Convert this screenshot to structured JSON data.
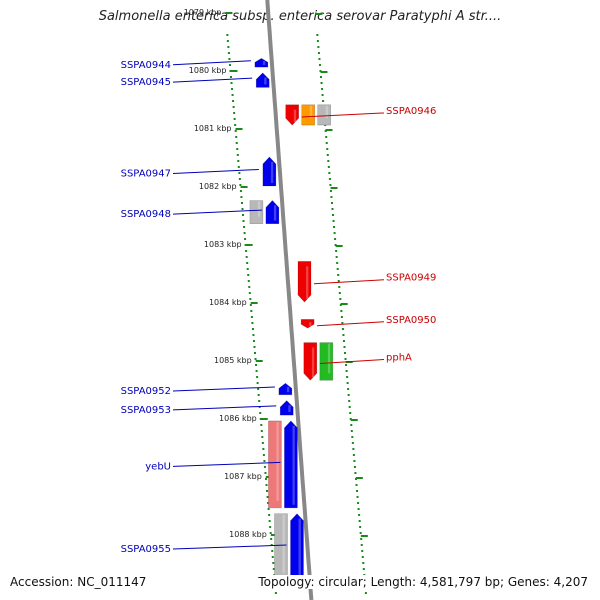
{
  "title": "Salmonella enterica subsp. enterica serovar Paratyphi A str....",
  "accession_label": "Accession: NC_011147",
  "topology_label": "Topology: circular; Length: 4,581,797 bp; Genes: 4,207",
  "colors": {
    "forward": "#0000ee",
    "reverse": "#ee0000",
    "forward_label": "#0000bb",
    "reverse_label": "#cc0000",
    "ruler": "#888888",
    "ticks": "#1a8a1a",
    "pseudo_grey": "#b8b8b8",
    "pink": "#ee7777",
    "green": "#22bb22",
    "orange": "#ff9900"
  },
  "ticks": [
    {
      "kbp": 1079,
      "label": "1079 kbp"
    },
    {
      "kbp": 1080,
      "label": "1080 kbp"
    },
    {
      "kbp": 1081,
      "label": "1081 kbp"
    },
    {
      "kbp": 1082,
      "label": "1082 kbp"
    },
    {
      "kbp": 1083,
      "label": "1083 kbp"
    },
    {
      "kbp": 1084,
      "label": "1084 kbp"
    },
    {
      "kbp": 1085,
      "label": "1085 kbp"
    },
    {
      "kbp": 1086,
      "label": "1086 kbp"
    },
    {
      "kbp": 1087,
      "label": "1087 kbp"
    },
    {
      "kbp": 1088,
      "label": "1088 kbp"
    }
  ],
  "genes": [
    {
      "name": "SSPA0944",
      "strand": "+",
      "start": 1079.8,
      "end": 1079.95,
      "color": "forward",
      "lane": 0
    },
    {
      "name": "SSPA0945",
      "strand": "+",
      "start": 1080.05,
      "end": 1080.3,
      "color": "forward",
      "lane": 0
    },
    {
      "name": "SSPA0946",
      "strand": "-",
      "start": 1080.6,
      "end": 1080.95,
      "color": "reverse",
      "lane": 0
    },
    {
      "name": "",
      "strand": "-",
      "start": 1080.6,
      "end": 1080.95,
      "color": "orange",
      "lane": 1
    },
    {
      "name": "",
      "strand": "-",
      "start": 1080.6,
      "end": 1080.95,
      "color": "pseudo_grey",
      "lane": 2
    },
    {
      "name": "SSPA0947",
      "strand": "+",
      "start": 1081.5,
      "end": 1082.0,
      "color": "forward",
      "lane": 0
    },
    {
      "name": "SSPA0948",
      "strand": "+",
      "start": 1082.25,
      "end": 1082.65,
      "color": "forward",
      "lane": 0
    },
    {
      "name": "",
      "strand": "+",
      "start": 1082.25,
      "end": 1082.65,
      "color": "pseudo_grey",
      "lane": 1
    },
    {
      "name": "SSPA0949",
      "strand": "-",
      "start": 1083.3,
      "end": 1084.0,
      "color": "reverse",
      "lane": 0
    },
    {
      "name": "SSPA0950",
      "strand": "-",
      "start": 1084.3,
      "end": 1084.45,
      "color": "reverse",
      "lane": 0
    },
    {
      "name": "pphA",
      "strand": "-",
      "start": 1084.7,
      "end": 1085.35,
      "color": "reverse",
      "lane": 0
    },
    {
      "name": "",
      "strand": "-",
      "start": 1084.7,
      "end": 1085.35,
      "color": "green",
      "lane": 1
    },
    {
      "name": "SSPA0952",
      "strand": "+",
      "start": 1085.4,
      "end": 1085.6,
      "color": "forward",
      "lane": 0
    },
    {
      "name": "SSPA0953",
      "strand": "+",
      "start": 1085.7,
      "end": 1085.95,
      "color": "forward",
      "lane": 0
    },
    {
      "name": "yebU",
      "strand": "+",
      "start": 1086.05,
      "end": 1087.55,
      "color": "forward",
      "lane": 0
    },
    {
      "name": "",
      "strand": "+",
      "start": 1086.05,
      "end": 1087.55,
      "color": "pink",
      "lane": 1
    },
    {
      "name": "SSPA0955",
      "strand": "+",
      "start": 1087.65,
      "end": 1088.8,
      "color": "forward",
      "lane": 0
    },
    {
      "name": "",
      "strand": "+",
      "start": 1087.65,
      "end": 1088.8,
      "color": "pseudo_grey",
      "lane": 1
    }
  ]
}
